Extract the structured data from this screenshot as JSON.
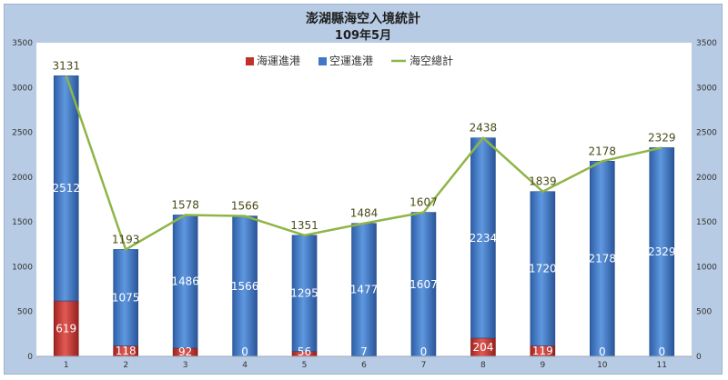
{
  "chart_data": {
    "type": "bar",
    "title": "澎湖縣海空入境統計",
    "subtitle": "109年5月",
    "categories": [
      "1",
      "2",
      "3",
      "4",
      "5",
      "6",
      "7",
      "8",
      "9",
      "10",
      "11"
    ],
    "series": [
      {
        "name": "海運進港",
        "values": [
          619,
          118,
          92,
          0,
          56,
          7,
          0,
          204,
          119,
          0,
          0
        ],
        "color": "#c0302c"
      },
      {
        "name": "空運進港",
        "values": [
          2512,
          1075,
          1486,
          1566,
          1295,
          1477,
          1607,
          2234,
          1720,
          2178,
          2329
        ],
        "color": "#3f78c6"
      },
      {
        "name": "海空總計",
        "type": "line",
        "values": [
          3131,
          1193,
          1578,
          1566,
          1351,
          1484,
          1607,
          2438,
          1839,
          2178,
          2329
        ],
        "color": "#8fb546"
      }
    ],
    "stacked": true,
    "ylim": [
      0,
      3500
    ],
    "yticks": [
      "0",
      "500",
      "1000",
      "1500",
      "2000",
      "2500",
      "3000",
      "3500"
    ],
    "secondary_axis": true,
    "legend_position": "top-center",
    "grid": false
  }
}
